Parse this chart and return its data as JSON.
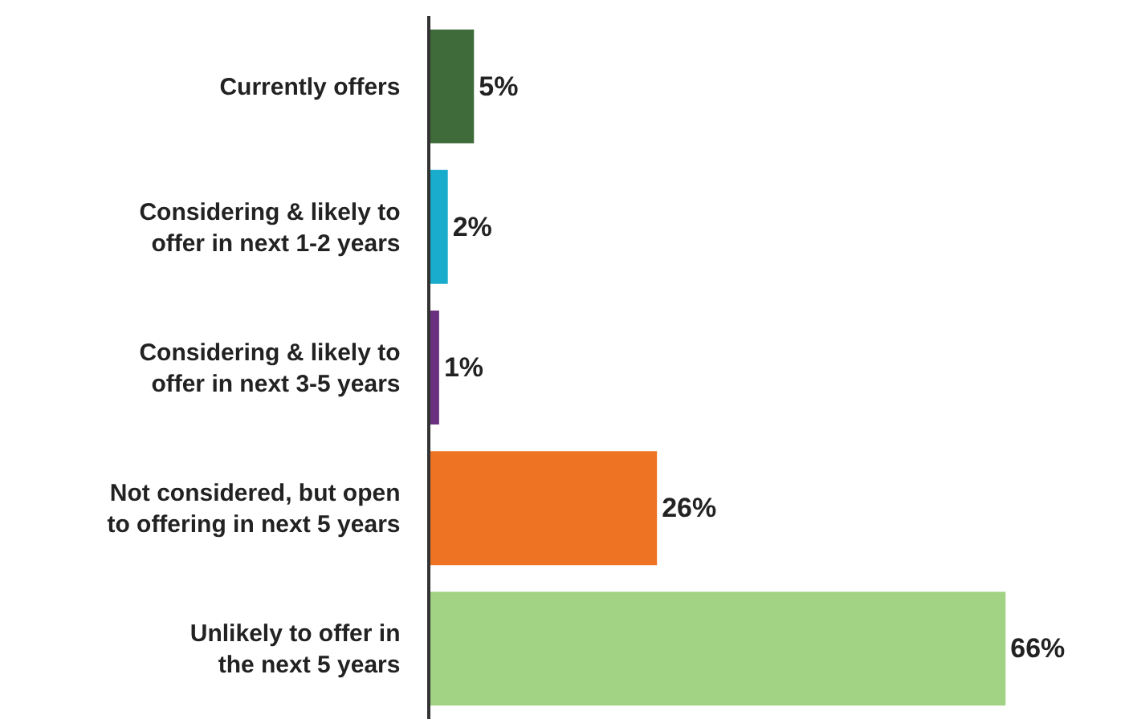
{
  "chart_data": {
    "type": "bar",
    "orientation": "horizontal",
    "categories": [
      "Currently offers",
      "Considering & likely to\noffer in next 1-2 years",
      "Considering & likely to\noffer in next 3-5 years",
      "Not considered, but open\nto offering in next 5 years",
      "Unlikely to offer in\nthe next 5 years"
    ],
    "values": [
      5,
      2,
      1,
      26,
      66
    ],
    "colors": [
      "#3f6b3a",
      "#1aaccc",
      "#6a2f7e",
      "#ee7423",
      "#a2d283"
    ],
    "value_labels": [
      "5%",
      "2%",
      "1%",
      "26%",
      "66%"
    ],
    "tick_labels": "y"
  }
}
